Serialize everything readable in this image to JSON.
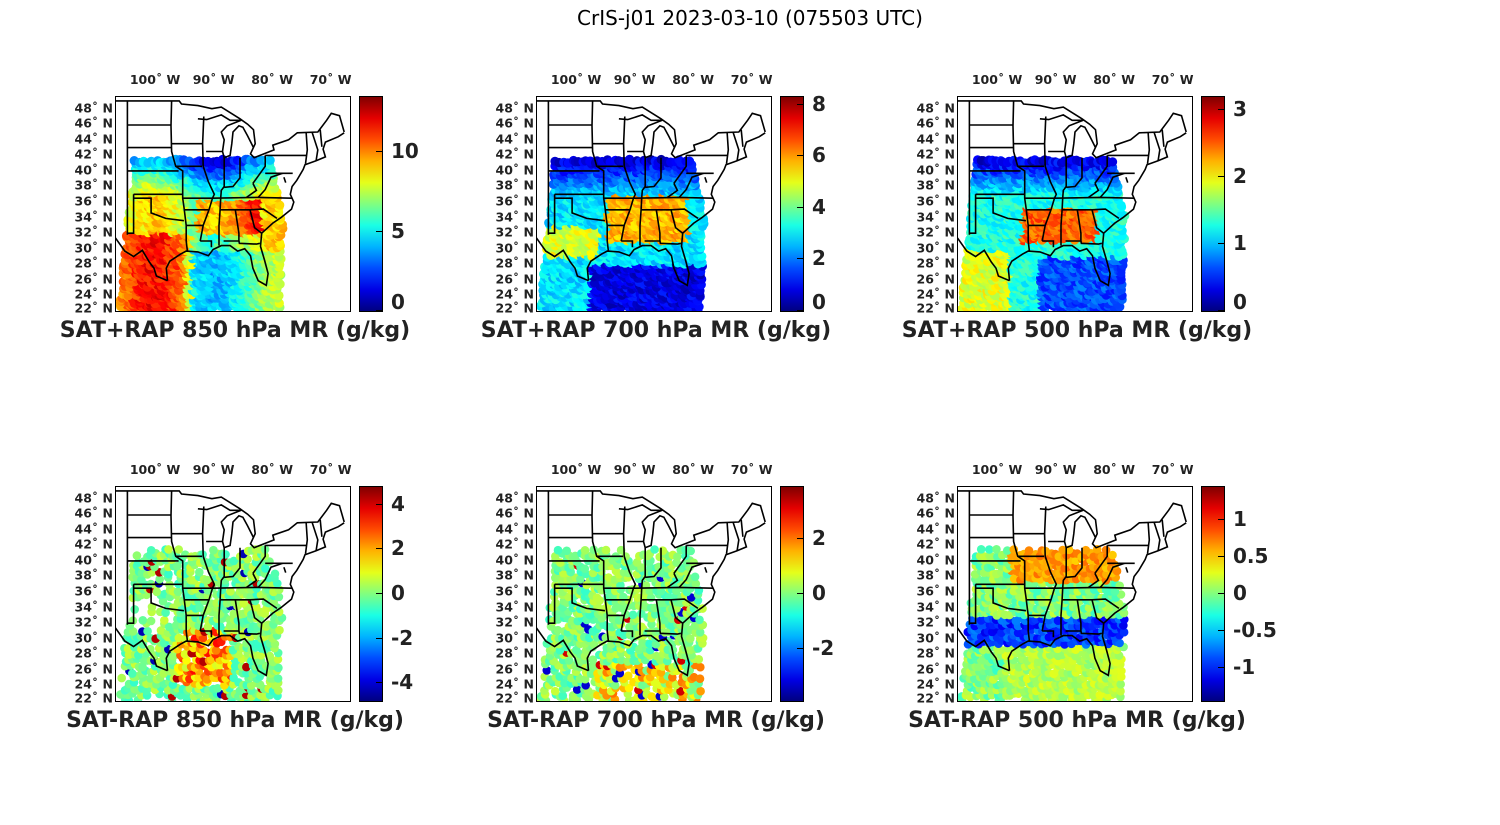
{
  "figure": {
    "title": "CrIS-j01 2023-03-10 (075503 UTC)"
  },
  "lon_labels": [
    "100˚ W",
    "90˚ W",
    "80˚ W",
    "70˚ W"
  ],
  "lat_labels": [
    "48˚ N",
    "46˚ N",
    "44˚ N",
    "42˚ N",
    "40˚ N",
    "38˚ N",
    "36˚ N",
    "34˚ N",
    "32˚ N",
    "30˚ N",
    "28˚ N",
    "26˚ N",
    "24˚ N",
    "22˚ N"
  ],
  "colormap": "jet",
  "panels": [
    {
      "title": "SAT+RAP 850 hPa MR (g/kg)",
      "cbar_range": [
        0,
        13.5
      ],
      "cbar_ticks": [
        "0",
        "5",
        "10"
      ],
      "cbar_tick_values": [
        0,
        5,
        10
      ],
      "field": "total",
      "level": 850
    },
    {
      "title": "SAT+RAP 700 hPa MR (g/kg)",
      "cbar_range": [
        0,
        8.3
      ],
      "cbar_ticks": [
        "0",
        "2",
        "4",
        "6",
        "8"
      ],
      "cbar_tick_values": [
        0,
        2,
        4,
        6,
        8
      ],
      "field": "total",
      "level": 700
    },
    {
      "title": "SAT+RAP 500 hPa MR (g/kg)",
      "cbar_range": [
        0,
        3.2
      ],
      "cbar_ticks": [
        "0",
        "1",
        "2",
        "3"
      ],
      "cbar_tick_values": [
        0,
        1,
        2,
        3
      ],
      "field": "total",
      "level": 500
    },
    {
      "title": "SAT-RAP 850 hPa MR (g/kg)",
      "cbar_range": [
        -4.8,
        4.8
      ],
      "cbar_ticks": [
        "-4",
        "-2",
        "0",
        "2",
        "4"
      ],
      "cbar_tick_values": [
        -4,
        -2,
        0,
        2,
        4
      ],
      "field": "diff",
      "level": 850
    },
    {
      "title": "SAT-RAP 700 hPa MR (g/kg)",
      "cbar_range": [
        -3.9,
        3.9
      ],
      "cbar_ticks": [
        "-2",
        "0",
        "2"
      ],
      "cbar_tick_values": [
        -2,
        0,
        2
      ],
      "field": "diff",
      "level": 700
    },
    {
      "title": "SAT-RAP 500 hPa MR (g/kg)",
      "cbar_range": [
        -1.45,
        1.45
      ],
      "cbar_ticks": [
        "-1",
        "-0.5",
        "0",
        "0.5",
        "1"
      ],
      "cbar_tick_values": [
        -1,
        -0.5,
        0,
        0.5,
        1
      ],
      "field": "diff",
      "level": 500
    }
  ]
}
